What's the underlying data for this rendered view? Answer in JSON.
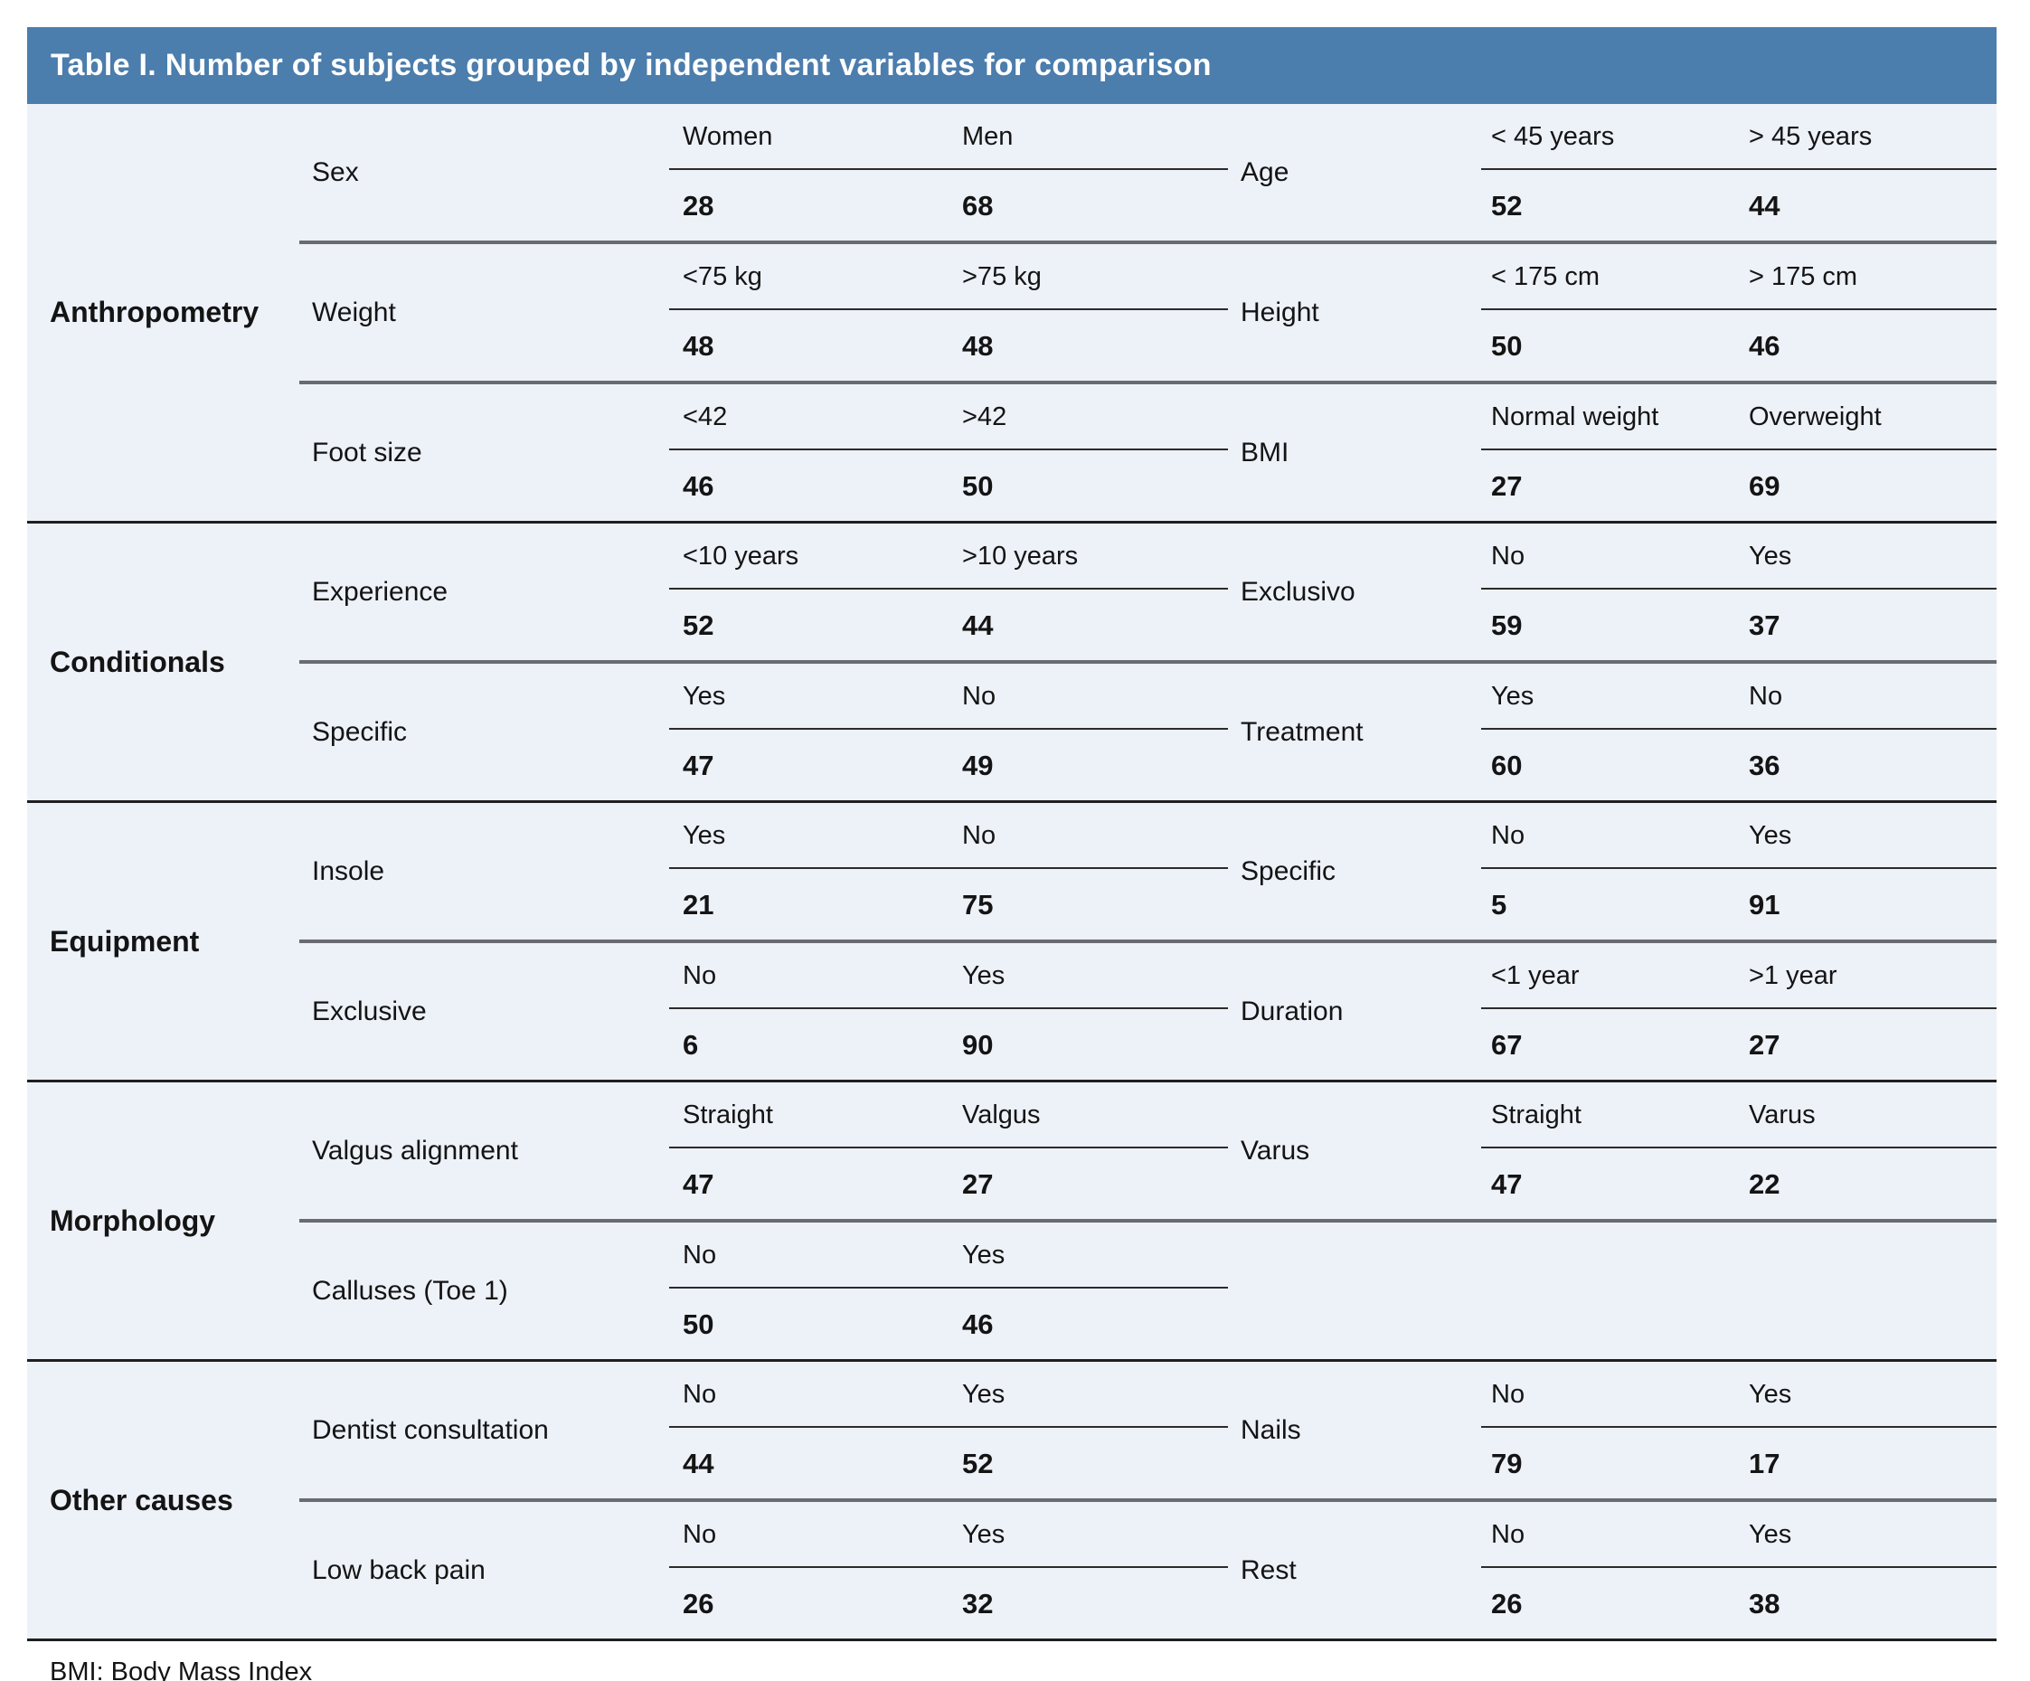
{
  "title": "Table I. Number of subjects grouped by independent variables for comparison",
  "footnote": "BMI: Body Mass Index",
  "colors": {
    "header_bg": "#4b7dad",
    "header_text": "#ffffff",
    "body_bg": "#edf1f8",
    "text": "#141414",
    "section_divider": "#1f1f1f",
    "row_divider": "#686b71",
    "label_divider": "#2b2b2b"
  },
  "sections": [
    {
      "category": "Anthropometry",
      "rows": [
        {
          "left": {
            "variable": "Sex",
            "labels": [
              "Women",
              "Men"
            ],
            "values": [
              "28",
              "68"
            ]
          },
          "right": {
            "variable": "Age",
            "labels": [
              "< 45 years",
              "> 45 years"
            ],
            "values": [
              "52",
              "44"
            ]
          }
        },
        {
          "left": {
            "variable": "Weight",
            "labels": [
              "<75 kg",
              ">75 kg"
            ],
            "values": [
              "48",
              "48"
            ]
          },
          "right": {
            "variable": "Height",
            "labels": [
              "< 175 cm",
              "> 175 cm"
            ],
            "values": [
              "50",
              "46"
            ]
          }
        },
        {
          "left": {
            "variable": "Foot size",
            "labels": [
              "<42",
              ">42"
            ],
            "values": [
              "46",
              "50"
            ]
          },
          "right": {
            "variable": "BMI",
            "labels": [
              "Normal weight",
              "Overweight"
            ],
            "values": [
              "27",
              "69"
            ]
          }
        }
      ]
    },
    {
      "category": "Conditionals",
      "rows": [
        {
          "left": {
            "variable": "Experience",
            "labels": [
              "<10 years",
              ">10 years"
            ],
            "values": [
              "52",
              "44"
            ]
          },
          "right": {
            "variable": "Exclusivo",
            "labels": [
              "No",
              "Yes"
            ],
            "values": [
              "59",
              "37"
            ]
          }
        },
        {
          "left": {
            "variable": "Specific",
            "labels": [
              "Yes",
              "No"
            ],
            "values": [
              "47",
              "49"
            ]
          },
          "right": {
            "variable": "Treatment",
            "labels": [
              "Yes",
              "No"
            ],
            "values": [
              "60",
              "36"
            ]
          }
        }
      ]
    },
    {
      "category": "Equipment",
      "rows": [
        {
          "left": {
            "variable": "Insole",
            "labels": [
              "Yes",
              "No"
            ],
            "values": [
              "21",
              "75"
            ]
          },
          "right": {
            "variable": "Specific",
            "labels": [
              "No",
              "Yes"
            ],
            "values": [
              "5",
              "91"
            ]
          }
        },
        {
          "left": {
            "variable": "Exclusive",
            "labels": [
              "No",
              "Yes"
            ],
            "values": [
              "6",
              "90"
            ]
          },
          "right": {
            "variable": "Duration",
            "labels": [
              "<1 year",
              ">1 year"
            ],
            "values": [
              "67",
              "27"
            ]
          }
        }
      ]
    },
    {
      "category": "Morphology",
      "rows": [
        {
          "left": {
            "variable": "Valgus alignment",
            "labels": [
              "Straight",
              "Valgus"
            ],
            "values": [
              "47",
              "27"
            ]
          },
          "right": {
            "variable": "Varus",
            "labels": [
              "Straight",
              "Varus"
            ],
            "values": [
              "47",
              "22"
            ]
          }
        },
        {
          "left": {
            "variable": "Calluses (Toe 1)",
            "labels": [
              "No",
              "Yes"
            ],
            "values": [
              "50",
              "46"
            ]
          },
          "right": null
        }
      ]
    },
    {
      "category": "Other causes",
      "rows": [
        {
          "left": {
            "variable": "Dentist consultation",
            "labels": [
              "No",
              "Yes"
            ],
            "values": [
              "44",
              "52"
            ]
          },
          "right": {
            "variable": "Nails",
            "labels": [
              "No",
              "Yes"
            ],
            "values": [
              "79",
              "17"
            ]
          }
        },
        {
          "left": {
            "variable": "Low back pain",
            "labels": [
              "No",
              "Yes"
            ],
            "values": [
              "26",
              "32"
            ]
          },
          "right": {
            "variable": "Rest",
            "labels": [
              "No",
              "Yes"
            ],
            "values": [
              "26",
              "38"
            ]
          }
        }
      ]
    }
  ]
}
